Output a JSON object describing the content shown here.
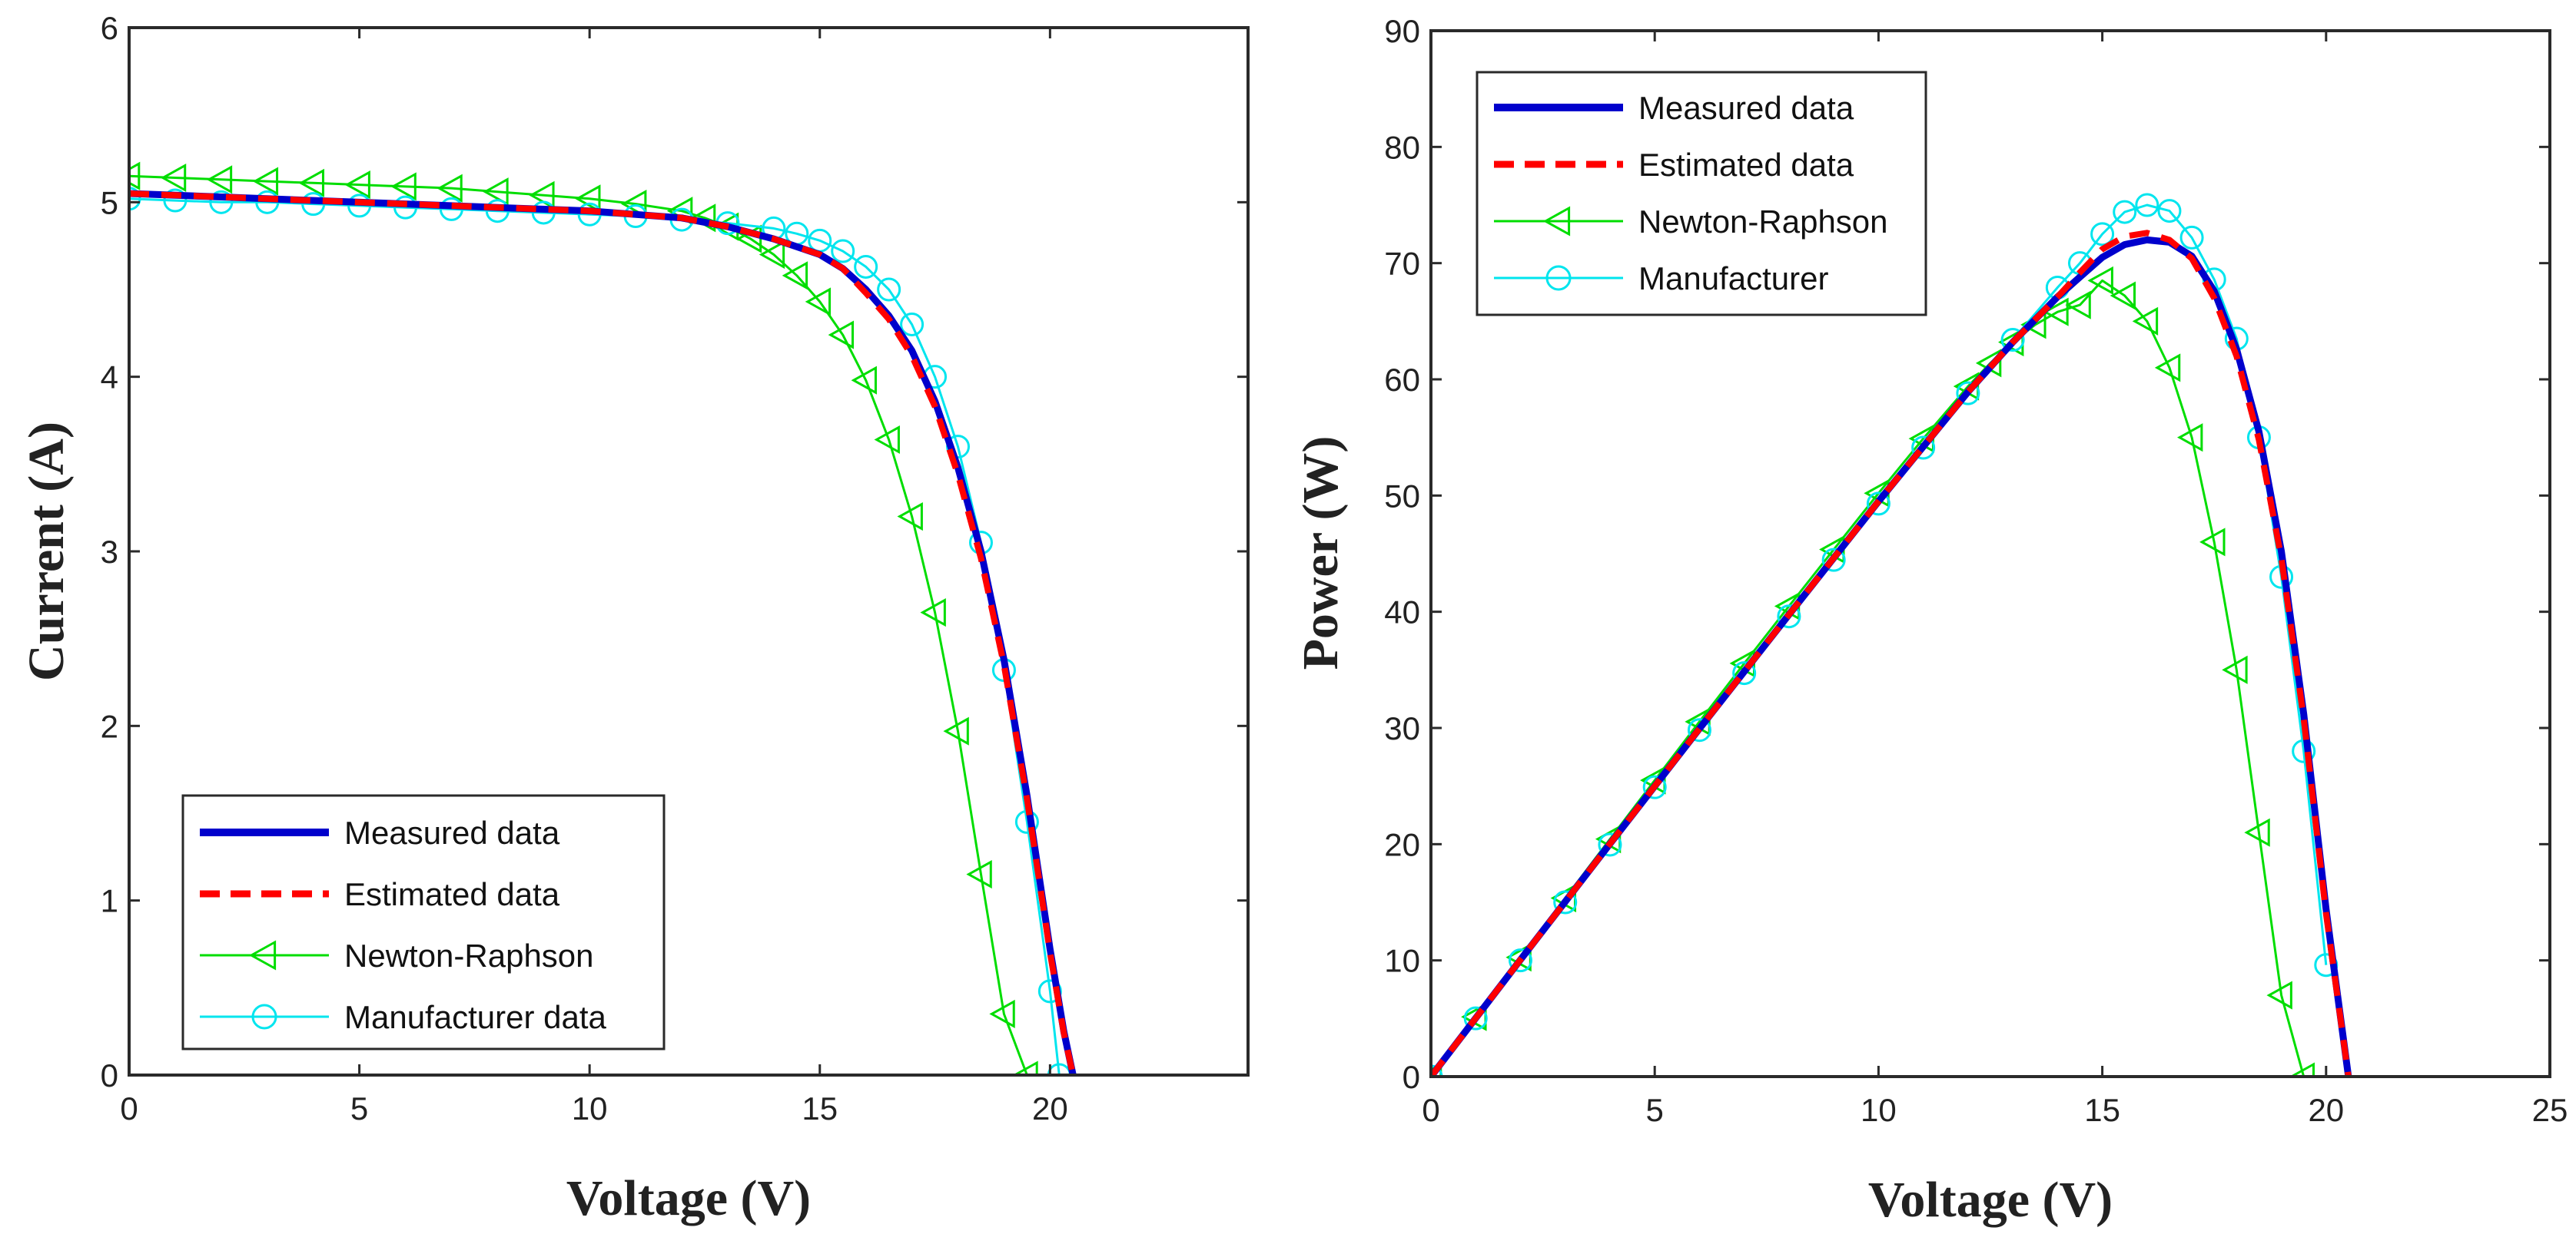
{
  "chart_data": [
    {
      "type": "line",
      "xlabel": "Voltage (V)",
      "ylabel": "Current (A)",
      "xlim": [
        0,
        24.3
      ],
      "ylim": [
        0,
        6
      ],
      "xticks": [
        "0",
        "5",
        "10",
        "15",
        "20"
      ],
      "yticks": [
        "0",
        "1",
        "2",
        "3",
        "4",
        "5",
        "6"
      ],
      "legend_position": "bottom-left",
      "series": [
        {
          "name": "Measured data",
          "color": "#0000cc",
          "style": "solid-thick",
          "x": [
            0,
            2,
            4,
            6,
            8,
            10,
            12,
            13,
            14,
            15,
            15.5,
            16,
            16.5,
            17,
            17.5,
            18,
            18.5,
            19,
            19.5,
            20,
            20.3,
            20.5
          ],
          "y": [
            5.05,
            5.03,
            5.01,
            4.99,
            4.97,
            4.95,
            4.91,
            4.86,
            4.79,
            4.7,
            4.62,
            4.5,
            4.35,
            4.15,
            3.86,
            3.48,
            3.0,
            2.38,
            1.6,
            0.72,
            0.25,
            0
          ]
        },
        {
          "name": "Estimated data",
          "color": "#ff0000",
          "style": "dashed",
          "x": [
            0,
            2,
            4,
            6,
            8,
            10,
            12,
            13,
            14,
            15,
            15.5,
            16,
            16.5,
            17,
            17.5,
            18,
            18.5,
            19,
            19.5,
            20,
            20.3,
            20.5
          ],
          "y": [
            5.05,
            5.03,
            5.01,
            4.99,
            4.97,
            4.95,
            4.91,
            4.86,
            4.79,
            4.7,
            4.62,
            4.48,
            4.33,
            4.12,
            3.83,
            3.44,
            2.96,
            2.35,
            1.58,
            0.7,
            0.24,
            0
          ]
        },
        {
          "name": "Newton-Raphson",
          "color": "#00dd00",
          "style": "triangle",
          "x": [
            0,
            1,
            2,
            3,
            4,
            5,
            6,
            7,
            8,
            9,
            10,
            11,
            12,
            12.5,
            13,
            13.5,
            14,
            14.5,
            15,
            15.5,
            16,
            16.5,
            17,
            17.5,
            18,
            18.5,
            19,
            19.5
          ],
          "y": [
            5.15,
            5.14,
            5.13,
            5.12,
            5.11,
            5.1,
            5.09,
            5.08,
            5.06,
            5.04,
            5.02,
            4.99,
            4.95,
            4.91,
            4.86,
            4.79,
            4.7,
            4.58,
            4.43,
            4.24,
            3.98,
            3.64,
            3.2,
            2.65,
            1.97,
            1.15,
            0.35,
            0
          ]
        },
        {
          "name": "Manufacturer data",
          "color": "#00e5ee",
          "style": "circle",
          "x": [
            0,
            1,
            2,
            3,
            4,
            5,
            6,
            7,
            8,
            9,
            10,
            11,
            12,
            13,
            14,
            14.5,
            15,
            15.5,
            16,
            16.5,
            17,
            17.5,
            18,
            18.5,
            19,
            19.5,
            20,
            20.2
          ],
          "y": [
            5.02,
            5.01,
            5.0,
            5.0,
            4.99,
            4.98,
            4.97,
            4.96,
            4.95,
            4.94,
            4.93,
            4.92,
            4.9,
            4.88,
            4.85,
            4.82,
            4.78,
            4.72,
            4.63,
            4.5,
            4.3,
            4.0,
            3.6,
            3.05,
            2.32,
            1.45,
            0.48,
            0
          ]
        }
      ]
    },
    {
      "type": "line",
      "xlabel": "Voltage (V)",
      "ylabel": "Power (W)",
      "xlim": [
        0,
        25
      ],
      "ylim": [
        0,
        90
      ],
      "xticks": [
        "0",
        "5",
        "10",
        "15",
        "20",
        "25"
      ],
      "yticks": [
        "0",
        "10",
        "20",
        "30",
        "40",
        "50",
        "60",
        "70",
        "80",
        "90"
      ],
      "legend_position": "top-left",
      "series": [
        {
          "name": "Measured data",
          "color": "#0000cc",
          "style": "solid-thick",
          "x": [
            0,
            2,
            4,
            6,
            8,
            10,
            12,
            13,
            14,
            14.5,
            15,
            15.5,
            16,
            16.5,
            17,
            17.5,
            18,
            18.5,
            19,
            19.5,
            20,
            20.5
          ],
          "y": [
            0,
            10.06,
            20.04,
            29.94,
            39.76,
            49.5,
            58.92,
            63.2,
            67.1,
            68.8,
            70.5,
            71.6,
            72.0,
            71.8,
            70.6,
            67.6,
            62.6,
            55.5,
            45.2,
            31.2,
            14.4,
            0
          ]
        },
        {
          "name": "Estimated data",
          "color": "#ff0000",
          "style": "dashed",
          "x": [
            0,
            2,
            4,
            6,
            8,
            10,
            12,
            13,
            14,
            14.5,
            15,
            15.5,
            16,
            16.5,
            17,
            17.5,
            18,
            18.5,
            19,
            19.5,
            20,
            20.5
          ],
          "y": [
            0,
            10.06,
            20.04,
            29.94,
            39.76,
            49.5,
            58.92,
            63.2,
            67.1,
            69.2,
            71.2,
            72.3,
            72.6,
            72.0,
            70.4,
            67.0,
            62.0,
            54.8,
            44.6,
            30.8,
            14.0,
            0
          ]
        },
        {
          "name": "Newton-Raphson",
          "color": "#00dd00",
          "style": "triangle",
          "x": [
            0,
            1,
            2,
            3,
            4,
            5,
            6,
            7,
            8,
            9,
            10,
            11,
            12,
            12.5,
            13,
            13.5,
            14,
            14.5,
            15,
            15.5,
            16,
            16.5,
            17,
            17.5,
            18,
            18.5,
            19,
            19.5
          ],
          "y": [
            0,
            5.14,
            10.26,
            15.36,
            20.44,
            25.5,
            30.54,
            35.56,
            40.48,
            45.36,
            50.2,
            54.9,
            59.4,
            61.4,
            63.2,
            64.7,
            65.8,
            66.4,
            68.5,
            67.2,
            65.0,
            61.0,
            55.0,
            46.0,
            35.0,
            21.0,
            7.0,
            0
          ]
        },
        {
          "name": "Manufacturer",
          "color": "#00e5ee",
          "style": "circle",
          "x": [
            0,
            1,
            2,
            3,
            4,
            5,
            6,
            7,
            8,
            9,
            10,
            11,
            12,
            13,
            14,
            14.5,
            15,
            15.5,
            16,
            16.5,
            17,
            17.5,
            18,
            18.5,
            19,
            19.5,
            20
          ],
          "y": [
            0,
            5.01,
            10.0,
            15.0,
            19.96,
            24.9,
            29.82,
            34.72,
            39.6,
            44.46,
            49.3,
            54.12,
            58.8,
            63.4,
            67.9,
            70.0,
            72.5,
            74.4,
            75.0,
            74.5,
            72.2,
            68.6,
            63.5,
            55.0,
            43.0,
            28.0,
            9.6
          ]
        }
      ]
    }
  ]
}
